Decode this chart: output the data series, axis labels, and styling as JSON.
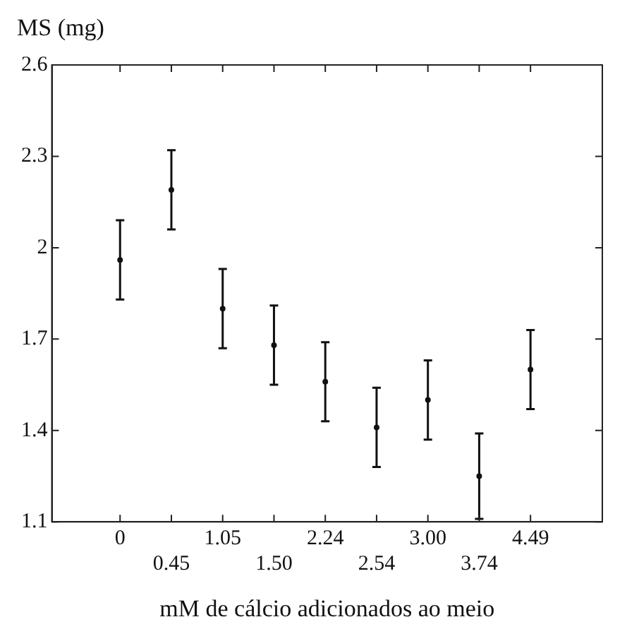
{
  "chart_data": {
    "type": "scatter",
    "xlabel": "mM de cálcio adicionados ao meio",
    "ylabel": "MS (mg)",
    "categories": [
      "0",
      "0.45",
      "1.05",
      "1.50",
      "2.24",
      "2.54",
      "3.00",
      "3.74",
      "4.49"
    ],
    "values": [
      1.96,
      2.19,
      1.8,
      1.68,
      1.56,
      1.41,
      1.5,
      1.25,
      1.6
    ],
    "errors": [
      0.13,
      0.13,
      0.13,
      0.13,
      0.13,
      0.13,
      0.13,
      0.14,
      0.13
    ],
    "color": "#111111",
    "marker": "circle",
    "ylim": [
      1.1,
      2.6
    ],
    "yticks": [
      1.1,
      1.4,
      1.7,
      2,
      2.3,
      2.6
    ],
    "grid": false
  }
}
